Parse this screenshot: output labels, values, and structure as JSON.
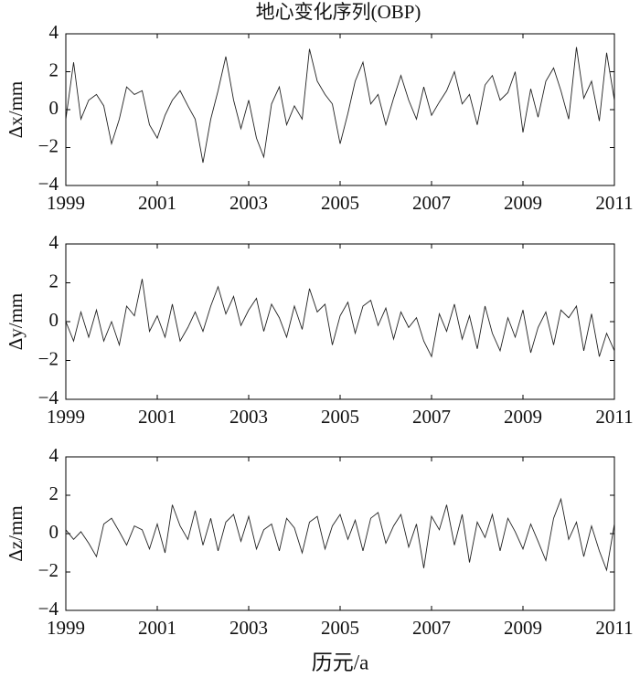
{
  "chart_data": [
    {
      "type": "line",
      "title": "地心变化序列(OBP)",
      "ylabel": "Δx/mm",
      "x": [
        1999,
        1999.17,
        1999.33,
        1999.5,
        1999.67,
        1999.83,
        2000,
        2000.17,
        2000.33,
        2000.5,
        2000.67,
        2000.83,
        2001,
        2001.17,
        2001.33,
        2001.5,
        2001.67,
        2001.83,
        2002,
        2002.17,
        2002.33,
        2002.5,
        2002.67,
        2002.83,
        2003,
        2003.17,
        2003.33,
        2003.5,
        2003.67,
        2003.83,
        2004,
        2004.17,
        2004.33,
        2004.5,
        2004.67,
        2004.83,
        2005,
        2005.17,
        2005.33,
        2005.5,
        2005.67,
        2005.83,
        2006,
        2006.17,
        2006.33,
        2006.5,
        2006.67,
        2006.83,
        2007,
        2007.17,
        2007.33,
        2007.5,
        2007.67,
        2007.83,
        2008,
        2008.17,
        2008.33,
        2008.5,
        2008.67,
        2008.83,
        2009,
        2009.17,
        2009.33,
        2009.5,
        2009.67,
        2009.83,
        2010,
        2010.17,
        2010.33,
        2010.5,
        2010.67,
        2010.83,
        2011
      ],
      "series": [
        {
          "color": "#222222",
          "values": [
            -0.5,
            2.5,
            -0.5,
            0.5,
            0.8,
            0.2,
            -1.8,
            -0.5,
            1.2,
            0.8,
            1.0,
            -0.8,
            -1.5,
            -0.3,
            0.5,
            1.0,
            0.2,
            -0.5,
            -2.8,
            -0.5,
            1.0,
            2.8,
            0.5,
            -1.0,
            0.5,
            -1.5,
            -2.5,
            0.3,
            1.2,
            -0.8,
            0.2,
            -0.5,
            3.2,
            1.5,
            0.8,
            0.3,
            -1.8,
            -0.2,
            1.5,
            2.5,
            0.3,
            0.8,
            -0.8,
            0.6,
            1.8,
            0.5,
            -0.5,
            1.2,
            -0.3,
            0.4,
            1.0,
            2.0,
            0.3,
            0.8,
            -0.8,
            1.3,
            1.8,
            0.5,
            0.9,
            2.0,
            -1.2,
            1.1,
            -0.4,
            1.5,
            2.2,
            1.0,
            -0.5,
            3.3,
            0.6,
            1.5,
            -0.6,
            3.0,
            0.5
          ]
        }
      ],
      "xlim": [
        1999,
        2011
      ],
      "xticks": [
        1999,
        2001,
        2003,
        2005,
        2007,
        2009,
        2011
      ],
      "ylim": [
        -4,
        4
      ],
      "yticks": [
        {
          "value": -4,
          "label": "−4"
        },
        {
          "value": -2,
          "label": "−2"
        },
        0,
        2,
        4
      ]
    },
    {
      "type": "line",
      "ylabel": "Δy/mm",
      "x": [
        1999,
        1999.17,
        1999.33,
        1999.5,
        1999.67,
        1999.83,
        2000,
        2000.17,
        2000.33,
        2000.5,
        2000.67,
        2000.83,
        2001,
        2001.17,
        2001.33,
        2001.5,
        2001.67,
        2001.83,
        2002,
        2002.17,
        2002.33,
        2002.5,
        2002.67,
        2002.83,
        2003,
        2003.17,
        2003.33,
        2003.5,
        2003.67,
        2003.83,
        2004,
        2004.17,
        2004.33,
        2004.5,
        2004.67,
        2004.83,
        2005,
        2005.17,
        2005.33,
        2005.5,
        2005.67,
        2005.83,
        2006,
        2006.17,
        2006.33,
        2006.5,
        2006.67,
        2006.83,
        2007,
        2007.17,
        2007.33,
        2007.5,
        2007.67,
        2007.83,
        2008,
        2008.17,
        2008.33,
        2008.5,
        2008.67,
        2008.83,
        2009,
        2009.17,
        2009.33,
        2009.5,
        2009.67,
        2009.83,
        2010,
        2010.17,
        2010.33,
        2010.5,
        2010.67,
        2010.83,
        2011
      ],
      "series": [
        {
          "color": "#222222",
          "values": [
            0,
            -1.0,
            0.5,
            -0.8,
            0.6,
            -1.0,
            0,
            -1.2,
            0.8,
            0.3,
            2.2,
            -0.5,
            0.3,
            -0.8,
            0.9,
            -1.0,
            -0.3,
            0.5,
            -0.5,
            0.8,
            1.8,
            0.4,
            1.3,
            -0.2,
            0.6,
            1.2,
            -0.5,
            0.9,
            0.2,
            -0.8,
            0.8,
            -0.4,
            1.7,
            0.5,
            0.9,
            -1.2,
            0.3,
            1.0,
            -0.6,
            0.8,
            1.1,
            -0.2,
            0.7,
            -0.9,
            0.5,
            -0.3,
            0.2,
            -1.0,
            -1.8,
            0.4,
            -0.5,
            0.9,
            -0.9,
            0.3,
            -1.4,
            0.8,
            -0.6,
            -1.5,
            0.2,
            -0.8,
            0.6,
            -1.6,
            -0.3,
            0.5,
            -1.2,
            0.6,
            0.2,
            0.8,
            -1.5,
            0.4,
            -1.8,
            -0.6,
            -1.5
          ]
        }
      ],
      "xlim": [
        1999,
        2011
      ],
      "xticks": [
        1999,
        2001,
        2003,
        2005,
        2007,
        2009,
        2011
      ],
      "ylim": [
        -4,
        4
      ],
      "yticks": [
        {
          "value": -4,
          "label": "−4"
        },
        {
          "value": -2,
          "label": "−2"
        },
        0,
        2,
        4
      ]
    },
    {
      "type": "line",
      "ylabel": "Δz/mm",
      "xlabel": "历元/a",
      "x": [
        1999,
        1999.17,
        1999.33,
        1999.5,
        1999.67,
        1999.83,
        2000,
        2000.17,
        2000.33,
        2000.5,
        2000.67,
        2000.83,
        2001,
        2001.17,
        2001.33,
        2001.5,
        2001.67,
        2001.83,
        2002,
        2002.17,
        2002.33,
        2002.5,
        2002.67,
        2002.83,
        2003,
        2003.17,
        2003.33,
        2003.5,
        2003.67,
        2003.83,
        2004,
        2004.17,
        2004.33,
        2004.5,
        2004.67,
        2004.83,
        2005,
        2005.17,
        2005.33,
        2005.5,
        2005.67,
        2005.83,
        2006,
        2006.17,
        2006.33,
        2006.5,
        2006.67,
        2006.83,
        2007,
        2007.17,
        2007.33,
        2007.5,
        2007.67,
        2007.83,
        2008,
        2008.17,
        2008.33,
        2008.5,
        2008.67,
        2008.83,
        2009,
        2009.17,
        2009.33,
        2009.5,
        2009.67,
        2009.83,
        2010,
        2010.17,
        2010.33,
        2010.5,
        2010.67,
        2010.83,
        2011
      ],
      "series": [
        {
          "color": "#222222",
          "values": [
            0.2,
            -0.3,
            0.1,
            -0.5,
            -1.2,
            0.5,
            0.8,
            0.1,
            -0.6,
            0.4,
            0.2,
            -0.8,
            0.5,
            -1.0,
            1.5,
            0.4,
            -0.3,
            1.2,
            -0.6,
            0.8,
            -0.9,
            0.6,
            1.0,
            -0.4,
            0.9,
            -0.8,
            0.2,
            0.5,
            -0.9,
            0.8,
            0.3,
            -1.0,
            0.6,
            0.9,
            -0.8,
            0.4,
            1.0,
            -0.3,
            0.7,
            -0.9,
            0.8,
            1.1,
            -0.5,
            0.4,
            1.0,
            -0.7,
            0.5,
            -1.8,
            0.9,
            0.2,
            1.5,
            -0.6,
            1.0,
            -1.5,
            0.6,
            -0.2,
            1.0,
            -0.9,
            0.8,
            0.1,
            -0.8,
            0.5,
            -0.4,
            -1.4,
            0.8,
            1.8,
            -0.3,
            0.6,
            -1.2,
            0.4,
            -0.9,
            -1.9,
            0.5
          ]
        }
      ],
      "xlim": [
        1999,
        2011
      ],
      "xticks": [
        1999,
        2001,
        2003,
        2005,
        2007,
        2009,
        2011
      ],
      "ylim": [
        -4,
        4
      ],
      "yticks": [
        {
          "value": -4,
          "label": "−4"
        },
        {
          "value": -2,
          "label": "−2"
        },
        0,
        2,
        4
      ]
    }
  ]
}
